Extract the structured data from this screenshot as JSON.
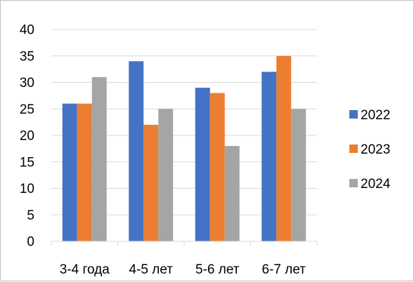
{
  "chart_data": {
    "type": "bar",
    "title": "",
    "xlabel": "",
    "ylabel": "",
    "categories": [
      "3-4 года",
      "4-5 лет",
      "5-6 лет",
      "6-7 лет"
    ],
    "series": [
      {
        "name": "2022",
        "values": [
          26,
          34,
          29,
          32
        ],
        "color": "#4472c4"
      },
      {
        "name": "2023",
        "values": [
          26,
          22,
          28,
          35
        ],
        "color": "#ed7d31"
      },
      {
        "name": "2024",
        "values": [
          31,
          25,
          18,
          25
        ],
        "color": "#a5a5a5"
      }
    ],
    "ylim": [
      0,
      40
    ],
    "yticks": [
      0,
      5,
      10,
      15,
      20,
      25,
      30,
      35,
      40
    ],
    "grid": true,
    "legend": "right"
  }
}
